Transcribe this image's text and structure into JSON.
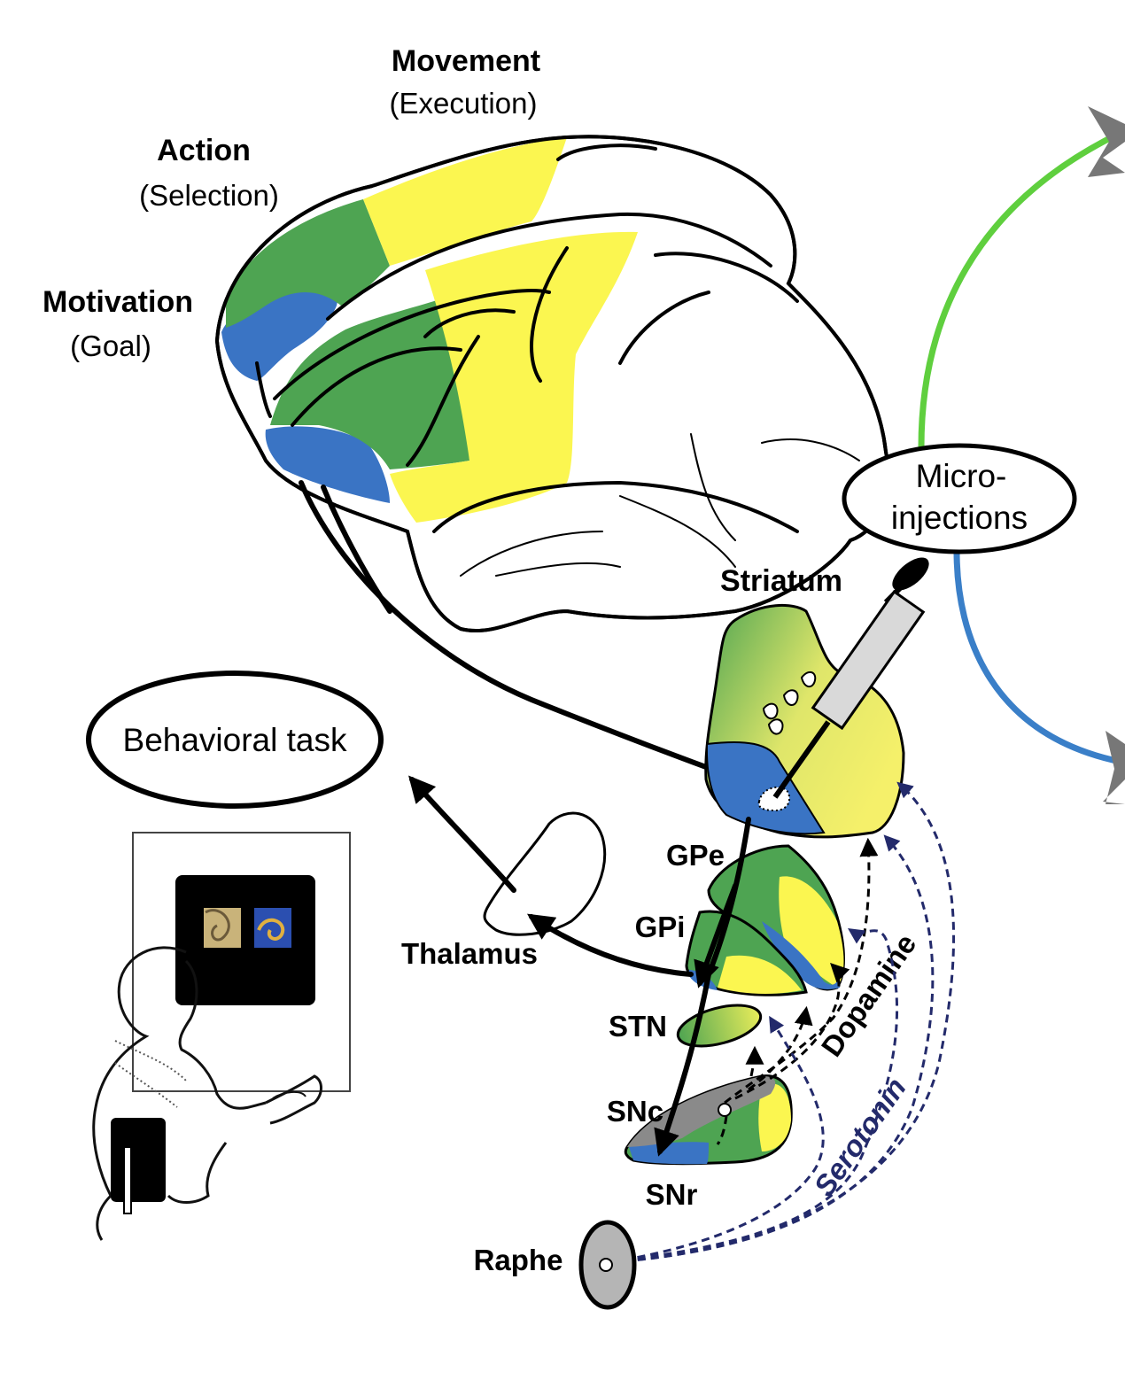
{
  "cortex_labels": {
    "movement": {
      "title": "Movement",
      "sub": "(Execution)"
    },
    "action": {
      "title": "Action",
      "sub": "(Selection)"
    },
    "motivation": {
      "title": "Motivation",
      "sub": "(Goal)"
    }
  },
  "boxes": {
    "microinjections_line1": "Micro-",
    "microinjections_line2": "injections",
    "behavioral_task": "Behavioral task"
  },
  "structures": {
    "striatum": "Striatum",
    "gpe": "GPe",
    "gpi": "GPi",
    "thalamus": "Thalamus",
    "stn": "STN",
    "snc": "SNc",
    "snr": "SNr",
    "raphe": "Raphe"
  },
  "pathways": {
    "dopamine": "Dopamine",
    "serotonin": "Serotonin"
  },
  "colors": {
    "motivation_blue": "#3a74c4",
    "action_green": "#4ea452",
    "movement_yellow": "#fbf650",
    "serotonin_navy": "#232a6b",
    "injection_green": "#5fcf3e",
    "injection_blue": "#3a7fc8",
    "arrowhead_gray": "#777777"
  },
  "icons": [
    "syringe-icon",
    "monkey-illustration",
    "screen-stimuli"
  ]
}
